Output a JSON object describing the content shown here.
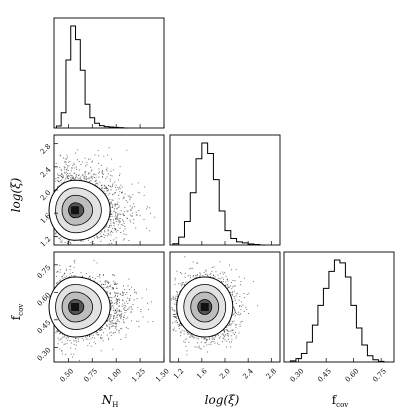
{
  "chart_data": {
    "type": "corner",
    "parameters": [
      {
        "key": "NH",
        "label": "N",
        "label_sub": "H",
        "range": [
          0.35,
          1.5
        ],
        "ticks": [
          "0.50",
          "0.75",
          "1.00",
          "1.25",
          "1.50"
        ]
      },
      {
        "key": "logxi",
        "label": "log(ξ)",
        "label_sub": "",
        "range": [
          1.05,
          2.95
        ],
        "ticks": [
          "1.2",
          "1.6",
          "2.0",
          "2.4",
          "2.8"
        ]
      },
      {
        "key": "fcov",
        "label": "f",
        "label_sub": "cov",
        "range": [
          0.22,
          0.82
        ],
        "ticks": [
          "0.30",
          "0.45",
          "0.60",
          "0.75"
        ]
      }
    ],
    "histograms": [
      {
        "param": "NH",
        "bins_x": [
          0.4,
          0.45,
          0.5,
          0.55,
          0.6,
          0.65,
          0.7,
          0.75,
          0.8,
          0.85,
          0.9,
          0.95,
          1.0,
          1.05,
          1.1
        ],
        "counts": [
          6,
          45,
          200,
          300,
          260,
          170,
          70,
          30,
          14,
          7,
          4,
          3,
          2,
          1,
          0
        ]
      },
      {
        "param": "logxi",
        "bins_x": [
          1.15,
          1.25,
          1.35,
          1.45,
          1.55,
          1.65,
          1.75,
          1.85,
          1.95,
          2.05,
          2.15,
          2.25,
          2.35,
          2.45,
          2.55,
          2.65
        ],
        "counts": [
          5,
          30,
          90,
          200,
          330,
          390,
          350,
          250,
          130,
          55,
          25,
          12,
          8,
          4,
          2,
          0
        ]
      },
      {
        "param": "fcov",
        "bins_x": [
          0.27,
          0.3,
          0.33,
          0.36,
          0.39,
          0.42,
          0.45,
          0.48,
          0.51,
          0.54,
          0.57,
          0.6,
          0.63,
          0.66,
          0.69,
          0.72,
          0.75
        ],
        "counts": [
          4,
          12,
          30,
          70,
          130,
          200,
          260,
          320,
          360,
          350,
          300,
          200,
          120,
          60,
          22,
          8,
          2
        ]
      }
    ],
    "joint": [
      {
        "x": "NH",
        "y": "logxi",
        "center": [
          0.57,
          1.65
        ]
      },
      {
        "x": "NH",
        "y": "fcov",
        "center": [
          0.57,
          0.52
        ]
      },
      {
        "x": "logxi",
        "y": "fcov",
        "center": [
          1.65,
          0.52
        ]
      }
    ],
    "grid": false,
    "colors": {
      "ink": "#000000",
      "background": "#ffffff"
    }
  }
}
